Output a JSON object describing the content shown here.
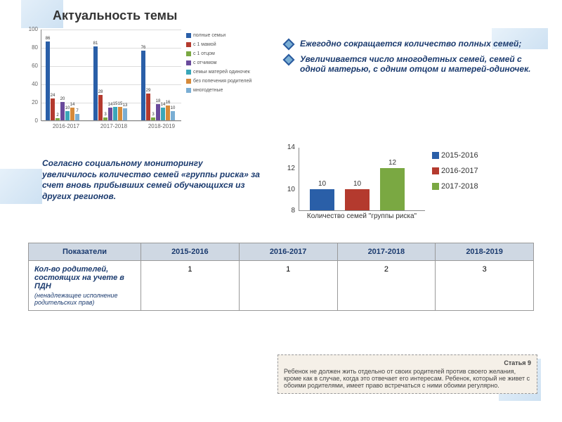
{
  "title": "Актуальность темы",
  "chart1": {
    "type": "bar",
    "ylim": [
      0,
      100
    ],
    "ytick_step": 20,
    "grid_color": "#dddddd",
    "categories": [
      "2016-2017",
      "2017-2018",
      "2018-2019"
    ],
    "series": [
      {
        "label": "полные семьи",
        "color": "#2a5fa8",
        "values": [
          86,
          81,
          76
        ]
      },
      {
        "label": "с 1 мамой",
        "color": "#b43a2e",
        "values": [
          24,
          28,
          29
        ]
      },
      {
        "label": "с 1 отцом",
        "color": "#7aa842",
        "values": [
          2,
          3,
          3
        ]
      },
      {
        "label": "с отчимом",
        "color": "#6a4a9c",
        "values": [
          20,
          14,
          18
        ]
      },
      {
        "label": "семьи матерей одиночек",
        "color": "#3aa6b8",
        "values": [
          10,
          15,
          14
        ]
      },
      {
        "label": "без попечения родителей",
        "color": "#d68a3a",
        "values": [
          14,
          15,
          16
        ]
      },
      {
        "label": "многодетные",
        "color": "#7aaed4",
        "values": [
          7,
          13,
          10
        ]
      }
    ],
    "label_fontsize": 7
  },
  "bullets": [
    "Ежегодно сокращается количество полных семей;",
    "Увеличивается число многодетных семей, семей с одной матерью, с одним отцом и матерей-одиночек."
  ],
  "para2": "Согласно социальному мониторингу увеличилось количество семей «группы риска» за счет вновь прибывших семей обучающихся из других регионов.",
  "chart2": {
    "type": "bar",
    "ylim": [
      8,
      14
    ],
    "ytick_step": 2,
    "xlabel": "Количество семей \"группы риска\"",
    "series": [
      {
        "label": "2015-2016",
        "color": "#2a5fa8",
        "value": 10
      },
      {
        "label": "2016-2017",
        "color": "#b43a2e",
        "value": 10
      },
      {
        "label": "2017-2018",
        "color": "#7aa842",
        "value": 12
      }
    ]
  },
  "table": {
    "columns": [
      "Показатели",
      "2015-2016",
      "2016-2017",
      "2017-2018",
      "2018-2019"
    ],
    "row_label_main": "Кол-во родителей, состоящих на учете в ПДН",
    "row_label_sub": "(ненадлежащее исполнение родительских прав)",
    "row_values": [
      "1",
      "1",
      "2",
      "3"
    ]
  },
  "article": {
    "title": "Статья 9",
    "text": "Ребенок не должен жить отдельно от своих родителей против своего желания, кроме как в случае, когда это отвечает его интересам. Ребенок, который не живет с обоими родителями, имеет право встречаться с ними обоими регулярно."
  },
  "colors": {
    "heading": "#1a3a6e"
  }
}
